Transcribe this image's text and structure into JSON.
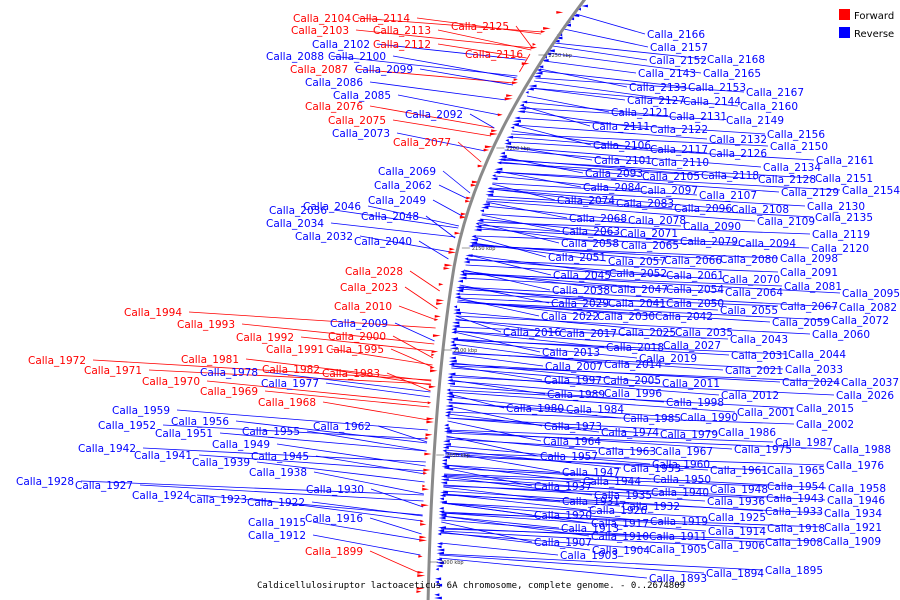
{
  "caption": "Caldicellulosiruptor lactoaceticus 6A chromosome, complete genome. - 0..2674809",
  "colors": {
    "forward": "#ff0000",
    "reverse": "#0000ff",
    "backbone": "#8a8a8a"
  },
  "legend": [
    {
      "label": "Forward",
      "color": "#ff0000"
    },
    {
      "label": "Reverse",
      "color": "#0000ff"
    }
  ],
  "ticks": [
    "2000 kbp",
    "2050 kbp",
    "2100 kbp",
    "2150 kbp",
    "2200 kbp",
    "2250 kbp"
  ],
  "labels": [
    [
      "Calla_2104",
      "f"
    ],
    [
      "Calla_2114",
      "f"
    ],
    [
      "Calla_2103",
      "f"
    ],
    [
      "Calla_2113",
      "f"
    ],
    [
      "Calla_2125",
      "f"
    ],
    [
      "Calla_2112",
      "f"
    ],
    [
      "Calla_2102",
      "r"
    ],
    [
      "Calla_2116",
      "f"
    ],
    [
      "Calla_2088",
      "r"
    ],
    [
      "Calla_2100",
      "r"
    ],
    [
      "Calla_2087",
      "f"
    ],
    [
      "Calla_2099",
      "r"
    ],
    [
      "Calla_2086",
      "r"
    ],
    [
      "Calla_2085",
      "r"
    ],
    [
      "Calla_2076",
      "f"
    ],
    [
      "Calla_2092",
      "r"
    ],
    [
      "Calla_2075",
      "f"
    ],
    [
      "Calla_2073",
      "r"
    ],
    [
      "Calla_2077",
      "f"
    ],
    [
      "Calla_2069",
      "r"
    ],
    [
      "Calla_2062",
      "r"
    ],
    [
      "Calla_2049",
      "r"
    ],
    [
      "Calla_2036",
      "r"
    ],
    [
      "Calla_2046",
      "r"
    ],
    [
      "Calla_2048",
      "r"
    ],
    [
      "Calla_2034",
      "r"
    ],
    [
      "Calla_2032",
      "r"
    ],
    [
      "Calla_2040",
      "r"
    ],
    [
      "Calla_2028",
      "f"
    ],
    [
      "Calla_2023",
      "f"
    ],
    [
      "Calla_2010",
      "f"
    ],
    [
      "Calla_1994",
      "f"
    ],
    [
      "Calla_2009",
      "r"
    ],
    [
      "Calla_1993",
      "f"
    ],
    [
      "Calla_2000",
      "f"
    ],
    [
      "Calla_1992",
      "f"
    ],
    [
      "Calla_1991",
      "f"
    ],
    [
      "Calla_1995",
      "f"
    ],
    [
      "Calla_1972",
      "f"
    ],
    [
      "Calla_1981",
      "f"
    ],
    [
      "Calla_1971",
      "f"
    ],
    [
      "Calla_1982",
      "f"
    ],
    [
      "Calla_1983",
      "f"
    ],
    [
      "Calla_1978",
      "r"
    ],
    [
      "Calla_1970",
      "f"
    ],
    [
      "Calla_1977",
      "r"
    ],
    [
      "Calla_1969",
      "f"
    ],
    [
      "Calla_1968",
      "f"
    ],
    [
      "Calla_1959",
      "r"
    ],
    [
      "Calla_1956",
      "r"
    ],
    [
      "Calla_1952",
      "r"
    ],
    [
      "Calla_1962",
      "r"
    ],
    [
      "Calla_1951",
      "r"
    ],
    [
      "Calla_1955",
      "r"
    ],
    [
      "Calla_1949",
      "r"
    ],
    [
      "Calla_1942",
      "r"
    ],
    [
      "Calla_1941",
      "r"
    ],
    [
      "Calla_1945",
      "r"
    ],
    [
      "Calla_1939",
      "r"
    ],
    [
      "Calla_1938",
      "r"
    ],
    [
      "Calla_1928",
      "r"
    ],
    [
      "Calla_1927",
      "r"
    ],
    [
      "Calla_1930",
      "r"
    ],
    [
      "Calla_1924",
      "r"
    ],
    [
      "Calla_1923",
      "r"
    ],
    [
      "Calla_1922",
      "r"
    ],
    [
      "Calla_1916",
      "r"
    ],
    [
      "Calla_1915",
      "r"
    ],
    [
      "Calla_1912",
      "r"
    ],
    [
      "Calla_1899",
      "f"
    ],
    [
      "Calla_2166",
      "r"
    ],
    [
      "Calla_2157",
      "r"
    ],
    [
      "Calla_2168",
      "r"
    ],
    [
      "Calla_2152",
      "r"
    ],
    [
      "Calla_2143",
      "r"
    ],
    [
      "Calla_2165",
      "r"
    ],
    [
      "Calla_2133",
      "r"
    ],
    [
      "Calla_2153",
      "r"
    ],
    [
      "Calla_2167",
      "r"
    ],
    [
      "Calla_2127",
      "r"
    ],
    [
      "Calla_2144",
      "r"
    ],
    [
      "Calla_2160",
      "r"
    ],
    [
      "Calla_2121",
      "r"
    ],
    [
      "Calla_2131",
      "r"
    ],
    [
      "Calla_2149",
      "r"
    ],
    [
      "Calla_2111",
      "r"
    ],
    [
      "Calla_2122",
      "r"
    ],
    [
      "Calla_2156",
      "r"
    ],
    [
      "Calla_2132",
      "r"
    ],
    [
      "Calla_2150",
      "r"
    ],
    [
      "Calla_2106",
      "r"
    ],
    [
      "Calla_2117",
      "r"
    ],
    [
      "Calla_2126",
      "r"
    ],
    [
      "Calla_2101",
      "r"
    ],
    [
      "Calla_2110",
      "r"
    ],
    [
      "Calla_2134",
      "r"
    ],
    [
      "Calla_2161",
      "r"
    ],
    [
      "Calla_2093",
      "r"
    ],
    [
      "Calla_2105",
      "r"
    ],
    [
      "Calla_2118",
      "r"
    ],
    [
      "Calla_2128",
      "r"
    ],
    [
      "Calla_2151",
      "r"
    ],
    [
      "Calla_2084",
      "r"
    ],
    [
      "Calla_2097",
      "r"
    ],
    [
      "Calla_2107",
      "r"
    ],
    [
      "Calla_2129",
      "r"
    ],
    [
      "Calla_2154",
      "r"
    ],
    [
      "Calla_2074",
      "r"
    ],
    [
      "Calla_2083",
      "r"
    ],
    [
      "Calla_2096",
      "r"
    ],
    [
      "Calla_2108",
      "r"
    ],
    [
      "Calla_2130",
      "r"
    ],
    [
      "Calla_2068",
      "r"
    ],
    [
      "Calla_2078",
      "r"
    ],
    [
      "Calla_2090",
      "r"
    ],
    [
      "Calla_2109",
      "r"
    ],
    [
      "Calla_2135",
      "r"
    ],
    [
      "Calla_2063",
      "r"
    ],
    [
      "Calla_2071",
      "r"
    ],
    [
      "Calla_2119",
      "r"
    ],
    [
      "Calla_2058",
      "r"
    ],
    [
      "Calla_2065",
      "r"
    ],
    [
      "Calla_2079",
      "r"
    ],
    [
      "Calla_2094",
      "r"
    ],
    [
      "Calla_2120",
      "r"
    ],
    [
      "Calla_2051",
      "r"
    ],
    [
      "Calla_2057",
      "r"
    ],
    [
      "Calla_2066",
      "r"
    ],
    [
      "Calla_2080",
      "r"
    ],
    [
      "Calla_2098",
      "r"
    ],
    [
      "Calla_2045",
      "r"
    ],
    [
      "Calla_2052",
      "r"
    ],
    [
      "Calla_2061",
      "r"
    ],
    [
      "Calla_2070",
      "r"
    ],
    [
      "Calla_2091",
      "r"
    ],
    [
      "Calla_2038",
      "r"
    ],
    [
      "Calla_2047",
      "r"
    ],
    [
      "Calla_2054",
      "r"
    ],
    [
      "Calla_2064",
      "r"
    ],
    [
      "Calla_2081",
      "r"
    ],
    [
      "Calla_2095",
      "r"
    ],
    [
      "Calla_2029",
      "r"
    ],
    [
      "Calla_2041",
      "r"
    ],
    [
      "Calla_2050",
      "r"
    ],
    [
      "Calla_2067",
      "r"
    ],
    [
      "Calla_2082",
      "r"
    ],
    [
      "Calla_2022",
      "r"
    ],
    [
      "Calla_2030",
      "r"
    ],
    [
      "Calla_2042",
      "r"
    ],
    [
      "Calla_2055",
      "r"
    ],
    [
      "Calla_2059",
      "r"
    ],
    [
      "Calla_2072",
      "r"
    ],
    [
      "Calla_2016",
      "r"
    ],
    [
      "Calla_2017",
      "r"
    ],
    [
      "Calla_2025",
      "r"
    ],
    [
      "Calla_2035",
      "r"
    ],
    [
      "Calla_2060",
      "r"
    ],
    [
      "Calla_2018",
      "r"
    ],
    [
      "Calla_2027",
      "r"
    ],
    [
      "Calla_2043",
      "r"
    ],
    [
      "Calla_2013",
      "r"
    ],
    [
      "Calla_2019",
      "r"
    ],
    [
      "Calla_2031",
      "r"
    ],
    [
      "Calla_2044",
      "r"
    ],
    [
      "Calla_2007",
      "r"
    ],
    [
      "Calla_2014",
      "r"
    ],
    [
      "Calla_2021",
      "r"
    ],
    [
      "Calla_2033",
      "r"
    ],
    [
      "Calla_1997",
      "r"
    ],
    [
      "Calla_2005",
      "r"
    ],
    [
      "Calla_2011",
      "r"
    ],
    [
      "Calla_2024",
      "r"
    ],
    [
      "Calla_2037",
      "r"
    ],
    [
      "Calla_1989",
      "r"
    ],
    [
      "Calla_1996",
      "r"
    ],
    [
      "Calla_2012",
      "r"
    ],
    [
      "Calla_2026",
      "r"
    ],
    [
      "Calla_1998",
      "r"
    ],
    [
      "Calla_1980",
      "r"
    ],
    [
      "Calla_1984",
      "r"
    ],
    [
      "Calla_2001",
      "r"
    ],
    [
      "Calla_2015",
      "r"
    ],
    [
      "Calla_1985",
      "r"
    ],
    [
      "Calla_1990",
      "r"
    ],
    [
      "Calla_2002",
      "r"
    ],
    [
      "Calla_1973",
      "r"
    ],
    [
      "Calla_1974",
      "r"
    ],
    [
      "Calla_1979",
      "r"
    ],
    [
      "Calla_1986",
      "r"
    ],
    [
      "Calla_1987",
      "r"
    ],
    [
      "Calla_1964",
      "r"
    ],
    [
      "Calla_1975",
      "r"
    ],
    [
      "Calla_1988",
      "r"
    ],
    [
      "Calla_1963",
      "r"
    ],
    [
      "Calla_1967",
      "r"
    ],
    [
      "Calla_1957",
      "r"
    ],
    [
      "Calla_1960",
      "r"
    ],
    [
      "Calla_1961",
      "r"
    ],
    [
      "Calla_1965",
      "r"
    ],
    [
      "Calla_1976",
      "r"
    ],
    [
      "Calla_1947",
      "r"
    ],
    [
      "Calla_1953",
      "r"
    ],
    [
      "Calla_1944",
      "r"
    ],
    [
      "Calla_1950",
      "r"
    ],
    [
      "Calla_1954",
      "r"
    ],
    [
      "Calla_1958",
      "r"
    ],
    [
      "Calla_1937",
      "r"
    ],
    [
      "Calla_1940",
      "r"
    ],
    [
      "Calla_1948",
      "r"
    ],
    [
      "Calla_1943",
      "r"
    ],
    [
      "Calla_1946",
      "r"
    ],
    [
      "Calla_1935",
      "r"
    ],
    [
      "Calla_1936",
      "r"
    ],
    [
      "Calla_1931",
      "r"
    ],
    [
      "Calla_1932",
      "r"
    ],
    [
      "Calla_1933",
      "r"
    ],
    [
      "Calla_1934",
      "r"
    ],
    [
      "Calla_1926",
      "r"
    ],
    [
      "Calla_1925",
      "r"
    ],
    [
      "Calla_1920",
      "r"
    ],
    [
      "Calla_1917",
      "r"
    ],
    [
      "Calla_1919",
      "r"
    ],
    [
      "Calla_1918",
      "r"
    ],
    [
      "Calla_1921",
      "r"
    ],
    [
      "Calla_1913",
      "r"
    ],
    [
      "Calla_1910",
      "r"
    ],
    [
      "Calla_1914",
      "r"
    ],
    [
      "Calla_1911",
      "r"
    ],
    [
      "Calla_1908",
      "r"
    ],
    [
      "Calla_1909",
      "r"
    ],
    [
      "Calla_1907",
      "r"
    ],
    [
      "Calla_1904",
      "r"
    ],
    [
      "Calla_1905",
      "r"
    ],
    [
      "Calla_1906",
      "r"
    ],
    [
      "Calla_1903",
      "r"
    ],
    [
      "Calla_1893",
      "r"
    ],
    [
      "Calla_1894",
      "r"
    ],
    [
      "Calla_1895",
      "r"
    ]
  ]
}
